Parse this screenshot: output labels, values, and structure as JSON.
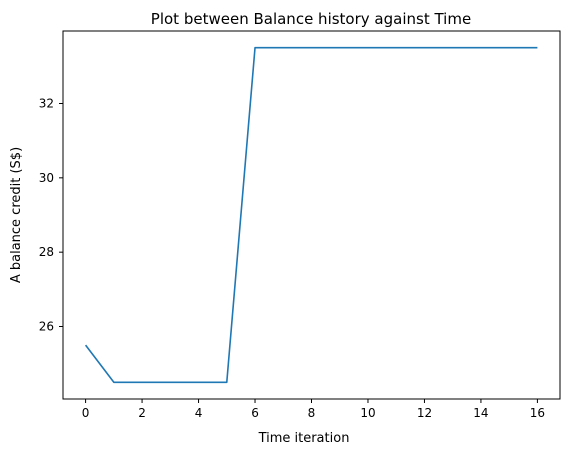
{
  "chart_data": {
    "type": "line",
    "title": "Plot between Balance history against Time",
    "xlabel": "Time iteration",
    "ylabel": "A balance credit (S$)",
    "xlim": [
      -0.8,
      16.8
    ],
    "ylim": [
      24.05,
      33.95
    ],
    "x_ticks": [
      0,
      2,
      4,
      6,
      8,
      10,
      12,
      14,
      16
    ],
    "y_ticks": [
      26,
      28,
      30,
      32
    ],
    "grid": false,
    "series": [
      {
        "name": "Balance",
        "color": "#1f77b4",
        "x": [
          0,
          1,
          2,
          3,
          4,
          5,
          6,
          7,
          8,
          9,
          10,
          11,
          12,
          13,
          14,
          15,
          16
        ],
        "y": [
          25.5,
          24.5,
          24.5,
          24.5,
          24.5,
          24.5,
          33.5,
          33.5,
          33.5,
          33.5,
          33.5,
          33.5,
          33.5,
          33.5,
          33.5,
          33.5,
          33.5
        ]
      }
    ]
  }
}
